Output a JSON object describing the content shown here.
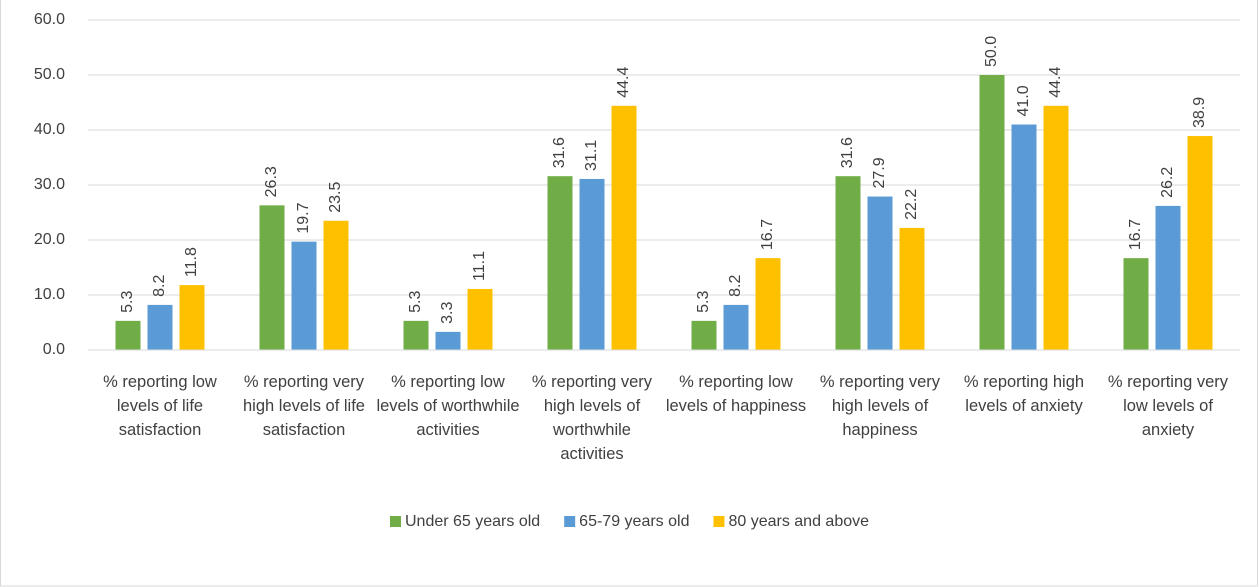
{
  "chart_data": {
    "type": "bar",
    "categories": [
      "% reporting low levels of life satisfaction",
      "% reporting very high levels of life satisfaction",
      "% reporting low levels of worthwhile activities",
      "% reporting very high levels of worthwhile activities",
      "% reporting low levels of happiness",
      "% reporting very high levels of happiness",
      "% reporting high levels of anxiety",
      "% reporting very low levels of anxiety"
    ],
    "series": [
      {
        "name": "Under 65 years old",
        "color": "#70ad47",
        "values": [
          5.3,
          26.3,
          5.3,
          31.6,
          5.3,
          31.6,
          50.0,
          16.7
        ],
        "value_labels": [
          "5.3",
          "26.3",
          "5.3",
          "31.6",
          "5.3",
          "31.6",
          "50.0",
          "16.7"
        ]
      },
      {
        "name": "65-79 years old",
        "color": "#5b9bd5",
        "values": [
          8.2,
          19.7,
          3.3,
          31.1,
          8.2,
          27.9,
          41.0,
          26.2
        ],
        "value_labels": [
          "8.2",
          "19.7",
          "3.3",
          "31.1",
          "8.2",
          "27.9",
          "41.0",
          "26.2"
        ]
      },
      {
        "name": "80 years and above",
        "color": "#ffc000",
        "values": [
          11.8,
          23.5,
          11.1,
          44.4,
          16.7,
          22.2,
          44.4,
          38.9
        ],
        "value_labels": [
          "11.8",
          "23.5",
          "11.1",
          "44.4",
          "16.7",
          "22.2",
          "44.4",
          "38.9"
        ]
      }
    ],
    "ylim": [
      0,
      60
    ],
    "yticks": [
      {
        "value": 0,
        "label": "0.0"
      },
      {
        "value": 10,
        "label": "10.0"
      },
      {
        "value": 20,
        "label": "20.0"
      },
      {
        "value": 30,
        "label": "30.0"
      },
      {
        "value": 40,
        "label": "40.0"
      },
      {
        "value": 50,
        "label": "50.0"
      },
      {
        "value": 60,
        "label": "60.0"
      }
    ],
    "grid": true,
    "legend": "bottom"
  }
}
